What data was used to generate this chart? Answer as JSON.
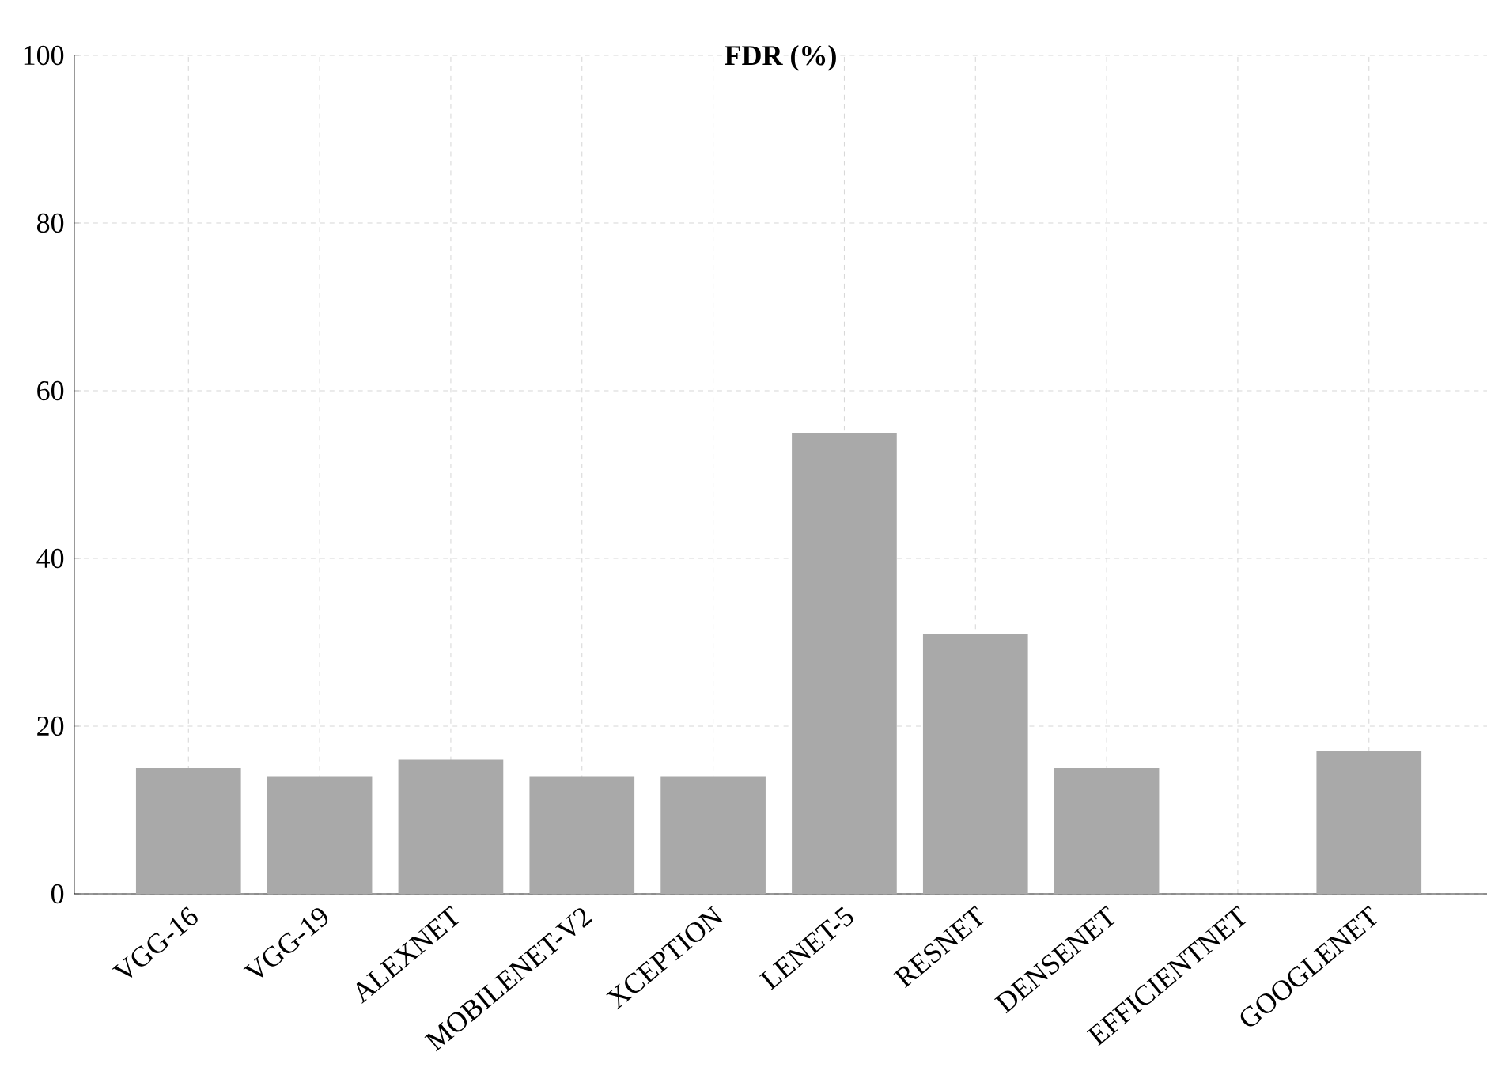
{
  "chart_data": {
    "type": "bar",
    "title": "**FDR (%)**",
    "categories": [
      "VGG-16",
      "VGG-19",
      "ALEXNET",
      "MOBILENET-V2",
      "XCEPTION",
      "LENET-5",
      "RESNET",
      "DENSENET",
      "EFFICIENTNET",
      "GOOGLENET"
    ],
    "values": [
      15,
      14,
      16,
      14,
      14,
      55,
      31,
      15,
      0,
      17
    ],
    "color": "#a9a9a9",
    "ylim": [
      0,
      100
    ],
    "yticks": [
      0,
      20,
      40,
      60,
      80,
      100
    ],
    "grid": true
  }
}
